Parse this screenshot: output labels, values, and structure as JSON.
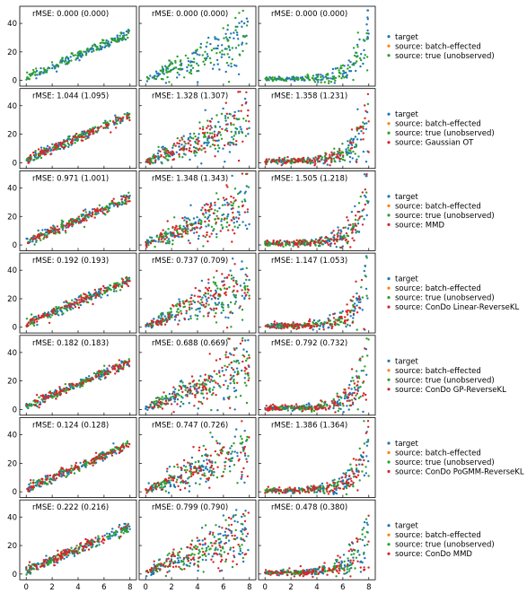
{
  "colors": {
    "target": "#1f77b4",
    "batch": "#ff7f0e",
    "true": "#2ca02c",
    "method": "#d62728"
  },
  "legend_base": [
    "target",
    "source: batch-effected",
    "source: true (unobserved)"
  ],
  "chart_data": {
    "type": "scatter",
    "grid": false,
    "xlim": [
      -0.5,
      8.5
    ],
    "ylim": [
      -4,
      52
    ],
    "xticks": [
      0,
      2,
      4,
      6,
      8
    ],
    "yticks": [
      0,
      20,
      40
    ],
    "columns": [
      {
        "shape": "linear"
      },
      {
        "shape": "heteroscedastic-linear"
      },
      {
        "shape": "exponential"
      }
    ],
    "rows": [
      {
        "method": "",
        "titles": [
          "rMSE: 0.000 (0.000)",
          "rMSE: 0.000 (0.000)",
          "rMSE: 0.000 (0.000)"
        ]
      },
      {
        "method": "source: Gaussian OT",
        "titles": [
          "rMSE: 1.044 (1.095)",
          "rMSE: 1.328 (1.307)",
          "rMSE: 1.358 (1.231)"
        ]
      },
      {
        "method": "source: MMD",
        "titles": [
          "rMSE: 0.971  (1.001)",
          "rMSE: 1.348  (1.343)",
          "rMSE: 1.505  (1.218)"
        ]
      },
      {
        "method": "source: ConDo Linear-ReverseKL",
        "titles": [
          "rMSE: 0.192 (0.193)",
          "rMSE: 0.737 (0.709)",
          "rMSE: 1.147 (1.053)"
        ]
      },
      {
        "method": "source: ConDo GP-ReverseKL",
        "titles": [
          "rMSE: 0.182 (0.183)",
          "rMSE: 0.688 (0.669)",
          "rMSE: 0.792 (0.732)"
        ]
      },
      {
        "method": "source: ConDo PoGMM-ReverseKL",
        "titles": [
          "rMSE: 0.124 (0.128)",
          "rMSE: 0.747 (0.726)",
          "rMSE: 1.386 (1.364)"
        ]
      },
      {
        "method": "source: ConDo MMD",
        "titles": [
          "rMSE: 0.222  (0.216)",
          "rMSE: 0.799  (0.790)",
          "rMSE: 0.478  (0.380)"
        ]
      }
    ]
  }
}
